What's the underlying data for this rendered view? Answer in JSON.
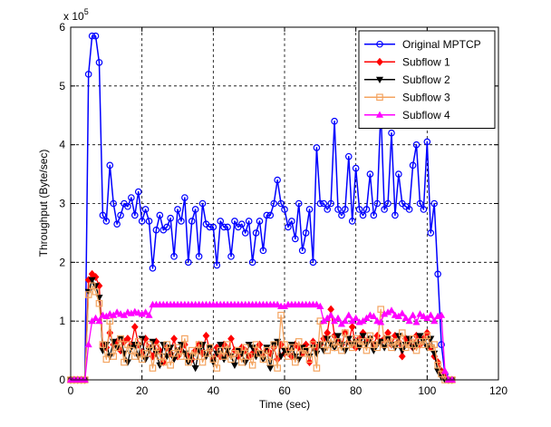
{
  "chart_data": {
    "type": "line",
    "xlabel": "Time (sec)",
    "ylabel": "Throughput (Byte/sec)",
    "y_exponent": "x 10",
    "y_exponent_power": "5",
    "xlim": [
      0,
      120
    ],
    "ylim": [
      0,
      600000
    ],
    "x_ticks": [
      "0",
      "20",
      "40",
      "60",
      "80",
      "100",
      "120"
    ],
    "y_ticks": [
      "0",
      "1",
      "2",
      "3",
      "4",
      "5",
      "6"
    ],
    "grid": true,
    "legend_position": "top-right",
    "colors": {
      "original": "#0000ff",
      "subflow1": "#ff0000",
      "subflow2": "#000000",
      "subflow3": "#f4a460",
      "subflow4": "#ff00ff"
    },
    "series": [
      {
        "name": "Original MPTCP",
        "marker": "circle",
        "x": [
          0,
          1,
          2,
          3,
          4,
          5,
          6,
          7,
          8,
          9,
          10,
          11,
          12,
          13,
          14,
          15,
          16,
          17,
          18,
          19,
          20,
          21,
          22,
          23,
          24,
          25,
          26,
          27,
          28,
          29,
          30,
          31,
          32,
          33,
          34,
          35,
          36,
          37,
          38,
          39,
          40,
          41,
          42,
          43,
          44,
          45,
          46,
          47,
          48,
          49,
          50,
          51,
          52,
          53,
          54,
          55,
          56,
          57,
          58,
          59,
          60,
          61,
          62,
          63,
          64,
          65,
          66,
          67,
          68,
          69,
          70,
          71,
          72,
          73,
          74,
          75,
          76,
          77,
          78,
          79,
          80,
          81,
          82,
          83,
          84,
          85,
          86,
          87,
          88,
          89,
          90,
          91,
          92,
          93,
          94,
          95,
          96,
          97,
          98,
          99,
          100,
          101,
          102,
          103,
          104,
          105,
          106,
          107
        ],
        "y": [
          0,
          0,
          0,
          0,
          0,
          520000,
          585000,
          585000,
          540000,
          280000,
          270000,
          365000,
          300000,
          265000,
          280000,
          300000,
          295000,
          310000,
          280000,
          320000,
          270000,
          290000,
          270000,
          190000,
          255000,
          280000,
          255000,
          260000,
          275000,
          210000,
          290000,
          270000,
          310000,
          200000,
          270000,
          290000,
          210000,
          300000,
          265000,
          260000,
          260000,
          195000,
          270000,
          260000,
          260000,
          210000,
          270000,
          260000,
          265000,
          250000,
          270000,
          200000,
          250000,
          270000,
          220000,
          280000,
          280000,
          300000,
          340000,
          300000,
          290000,
          260000,
          270000,
          240000,
          300000,
          220000,
          250000,
          290000,
          200000,
          395000,
          300000,
          300000,
          290000,
          300000,
          440000,
          290000,
          280000,
          290000,
          380000,
          270000,
          360000,
          290000,
          280000,
          290000,
          350000,
          280000,
          300000,
          460000,
          290000,
          300000,
          420000,
          280000,
          350000,
          300000,
          295000,
          290000,
          365000,
          400000,
          300000,
          290000,
          405000,
          250000,
          300000,
          180000,
          60000,
          10000,
          0,
          0
        ]
      },
      {
        "name": "Subflow 1",
        "marker": "diamond",
        "x": [
          0,
          1,
          2,
          3,
          4,
          5,
          6,
          7,
          8,
          9,
          10,
          11,
          12,
          13,
          14,
          15,
          16,
          17,
          18,
          19,
          20,
          21,
          22,
          23,
          24,
          25,
          26,
          27,
          28,
          29,
          30,
          31,
          32,
          33,
          34,
          35,
          36,
          37,
          38,
          39,
          40,
          41,
          42,
          43,
          44,
          45,
          46,
          47,
          48,
          49,
          50,
          51,
          52,
          53,
          54,
          55,
          56,
          57,
          58,
          59,
          60,
          61,
          62,
          63,
          64,
          65,
          66,
          67,
          68,
          69,
          70,
          71,
          72,
          73,
          74,
          75,
          76,
          77,
          78,
          79,
          80,
          81,
          82,
          83,
          84,
          85,
          86,
          87,
          88,
          89,
          90,
          91,
          92,
          93,
          94,
          95,
          96,
          97,
          98,
          99,
          100,
          101,
          102,
          103,
          104,
          105,
          106,
          107
        ],
        "y": [
          0,
          0,
          0,
          0,
          0,
          170000,
          180000,
          175000,
          160000,
          60000,
          55000,
          80000,
          60000,
          65000,
          50000,
          65000,
          70000,
          60000,
          90000,
          60000,
          45000,
          70000,
          55000,
          40000,
          65000,
          50000,
          30000,
          55000,
          45000,
          70000,
          40000,
          50000,
          60000,
          40000,
          35000,
          50000,
          60000,
          45000,
          75000,
          50000,
          35000,
          55000,
          40000,
          60000,
          45000,
          70000,
          50000,
          40000,
          55000,
          50000,
          40000,
          45000,
          50000,
          60000,
          40000,
          50000,
          45000,
          55000,
          35000,
          60000,
          45000,
          50000,
          40000,
          60000,
          55000,
          45000,
          60000,
          30000,
          65000,
          55000,
          60000,
          70000,
          80000,
          120000,
          75000,
          65000,
          60000,
          80000,
          65000,
          90000,
          55000,
          70000,
          80000,
          65000,
          70000,
          60000,
          75000,
          65000,
          70000,
          80000,
          60000,
          75000,
          65000,
          40000,
          70000,
          65000,
          55000,
          75000,
          60000,
          70000,
          80000,
          55000,
          40000,
          30000,
          15000,
          5000,
          0,
          0
        ]
      },
      {
        "name": "Subflow 2",
        "marker": "triangle-down",
        "x": [
          0,
          1,
          2,
          3,
          4,
          5,
          6,
          7,
          8,
          9,
          10,
          11,
          12,
          13,
          14,
          15,
          16,
          17,
          18,
          19,
          20,
          21,
          22,
          23,
          24,
          25,
          26,
          27,
          28,
          29,
          30,
          31,
          32,
          33,
          34,
          35,
          36,
          37,
          38,
          39,
          40,
          41,
          42,
          43,
          44,
          45,
          46,
          47,
          48,
          49,
          50,
          51,
          52,
          53,
          54,
          55,
          56,
          57,
          58,
          59,
          60,
          61,
          62,
          63,
          64,
          65,
          66,
          67,
          68,
          69,
          70,
          71,
          72,
          73,
          74,
          75,
          76,
          77,
          78,
          79,
          80,
          81,
          82,
          83,
          84,
          85,
          86,
          87,
          88,
          89,
          90,
          91,
          92,
          93,
          94,
          95,
          96,
          97,
          98,
          99,
          100,
          101,
          102,
          103,
          104,
          105,
          106,
          107
        ],
        "y": [
          0,
          0,
          0,
          0,
          0,
          150000,
          170000,
          160000,
          140000,
          50000,
          60000,
          40000,
          65000,
          55000,
          70000,
          45000,
          30000,
          55000,
          60000,
          40000,
          70000,
          35000,
          50000,
          65000,
          45000,
          25000,
          60000,
          40000,
          55000,
          35000,
          50000,
          60000,
          45000,
          30000,
          40000,
          20000,
          50000,
          60000,
          40000,
          55000,
          30000,
          45000,
          60000,
          35000,
          50000,
          40000,
          25000,
          50000,
          45000,
          30000,
          60000,
          55000,
          40000,
          45000,
          35000,
          55000,
          20000,
          60000,
          65000,
          40000,
          50000,
          45000,
          60000,
          40000,
          35000,
          55000,
          50000,
          40000,
          55000,
          45000,
          60000,
          50000,
          70000,
          60000,
          55000,
          75000,
          60000,
          50000,
          70000,
          60000,
          65000,
          55000,
          75000,
          60000,
          70000,
          50000,
          60000,
          65000,
          55000,
          70000,
          60000,
          55000,
          75000,
          50000,
          60000,
          70000,
          55000,
          60000,
          75000,
          65000,
          55000,
          70000,
          45000,
          15000,
          5000,
          0,
          0,
          0
        ]
      },
      {
        "name": "Subflow 3",
        "marker": "square",
        "x": [
          0,
          1,
          2,
          3,
          4,
          5,
          6,
          7,
          8,
          9,
          10,
          11,
          12,
          13,
          14,
          15,
          16,
          17,
          18,
          19,
          20,
          21,
          22,
          23,
          24,
          25,
          26,
          27,
          28,
          29,
          30,
          31,
          32,
          33,
          34,
          35,
          36,
          37,
          38,
          39,
          40,
          41,
          42,
          43,
          44,
          45,
          46,
          47,
          48,
          49,
          50,
          51,
          52,
          53,
          54,
          55,
          56,
          57,
          58,
          59,
          60,
          61,
          62,
          63,
          64,
          65,
          66,
          67,
          68,
          69,
          70,
          71,
          72,
          73,
          74,
          75,
          76,
          77,
          78,
          79,
          80,
          81,
          82,
          83,
          84,
          85,
          86,
          87,
          88,
          89,
          90,
          91,
          92,
          93,
          94,
          95,
          96,
          97,
          98,
          99,
          100,
          101,
          102,
          103,
          104,
          105,
          106,
          107
        ],
        "y": [
          0,
          0,
          0,
          0,
          0,
          145000,
          160000,
          150000,
          130000,
          60000,
          35000,
          100000,
          40000,
          55000,
          70000,
          30000,
          60000,
          50000,
          40000,
          65000,
          35000,
          45000,
          60000,
          20000,
          55000,
          40000,
          30000,
          60000,
          25000,
          45000,
          55000,
          40000,
          70000,
          30000,
          50000,
          40000,
          60000,
          30000,
          45000,
          55000,
          35000,
          20000,
          50000,
          40000,
          60000,
          35000,
          45000,
          50000,
          30000,
          55000,
          40000,
          25000,
          60000,
          45000,
          35000,
          50000,
          30000,
          60000,
          20000,
          110000,
          60000,
          40000,
          55000,
          30000,
          65000,
          45000,
          50000,
          35000,
          60000,
          20000,
          100000,
          60000,
          50000,
          70000,
          55000,
          65000,
          50000,
          80000,
          60000,
          55000,
          70000,
          60000,
          65000,
          50000,
          75000,
          60000,
          55000,
          120000,
          60000,
          70000,
          55000,
          65000,
          60000,
          80000,
          55000,
          60000,
          70000,
          50000,
          65000,
          60000,
          75000,
          55000,
          60000,
          25000,
          10000,
          0,
          0,
          0
        ]
      },
      {
        "name": "Subflow 4",
        "marker": "triangle-up",
        "x": [
          0,
          1,
          2,
          3,
          4,
          5,
          6,
          7,
          8,
          9,
          10,
          11,
          12,
          13,
          14,
          15,
          16,
          17,
          18,
          19,
          20,
          21,
          22,
          23,
          24,
          25,
          26,
          27,
          28,
          29,
          30,
          31,
          32,
          33,
          34,
          35,
          36,
          37,
          38,
          39,
          40,
          41,
          42,
          43,
          44,
          45,
          46,
          47,
          48,
          49,
          50,
          51,
          52,
          53,
          54,
          55,
          56,
          57,
          58,
          59,
          60,
          61,
          62,
          63,
          64,
          65,
          66,
          67,
          68,
          69,
          70,
          71,
          72,
          73,
          74,
          75,
          76,
          77,
          78,
          79,
          80,
          81,
          82,
          83,
          84,
          85,
          86,
          87,
          88,
          89,
          90,
          91,
          92,
          93,
          94,
          95,
          96,
          97,
          98,
          99,
          100,
          101,
          102,
          103,
          104,
          105,
          106,
          107
        ],
        "y": [
          0,
          0,
          0,
          0,
          0,
          60000,
          100000,
          105000,
          100000,
          110000,
          108000,
          112000,
          110000,
          115000,
          112000,
          110000,
          115000,
          113000,
          116000,
          114000,
          112000,
          115000,
          110000,
          128000,
          128000,
          128000,
          128000,
          128000,
          128000,
          128000,
          128000,
          128000,
          128000,
          128000,
          128000,
          128000,
          128000,
          128000,
          128000,
          128000,
          128000,
          128000,
          128000,
          128000,
          128000,
          128000,
          128000,
          128000,
          128000,
          128000,
          128000,
          128000,
          128000,
          128000,
          128000,
          128000,
          128000,
          128000,
          128000,
          125000,
          125000,
          128000,
          128000,
          128000,
          128000,
          128000,
          128000,
          128000,
          128000,
          128000,
          125000,
          100000,
          105000,
          110000,
          100000,
          105000,
          95000,
          100000,
          110000,
          100000,
          105000,
          98000,
          100000,
          105000,
          110000,
          108000,
          100000,
          98000,
          112000,
          115000,
          118000,
          110000,
          108000,
          113000,
          105000,
          100000,
          110000,
          98000,
          112000,
          108000,
          105000,
          110000,
          100000,
          108000,
          110000,
          15000,
          0,
          0
        ]
      }
    ]
  }
}
